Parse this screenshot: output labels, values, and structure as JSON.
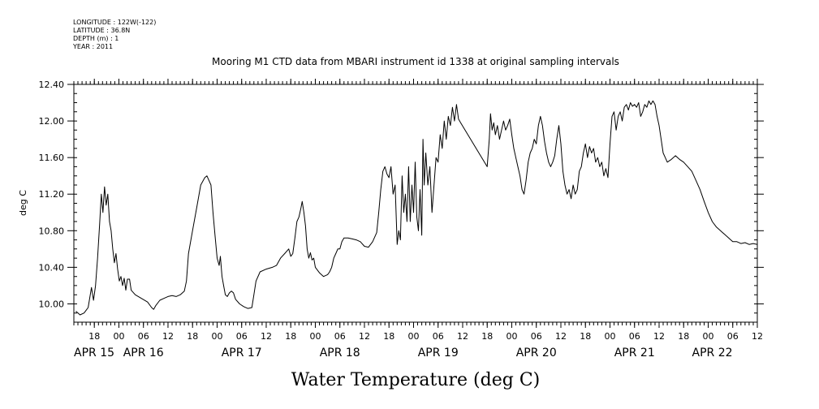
{
  "header": {
    "longitude": "LONGITUDE : 122W(-122)",
    "latitude": "LATITUDE : 36.8N",
    "depth": "DEPTH (m) : 1",
    "year": "YEAR : 2011"
  },
  "chart_data": {
    "type": "line",
    "title": "Mooring M1 CTD data from MBARI instrument id 1338 at original sampling intervals",
    "xlabel": "Water Temperature (deg C)",
    "ylabel": "deg C",
    "ylim": [
      9.8,
      12.4
    ],
    "yticks": [
      10.0,
      10.4,
      10.8,
      11.2,
      11.6,
      12.0,
      12.4
    ],
    "ytick_labels": [
      "10.00",
      "10.40",
      "10.80",
      "11.20",
      "11.60",
      "12.00",
      "12.40"
    ],
    "x_units": "hours since APR 15 00:00 (2011)",
    "xlim": [
      13,
      180
    ],
    "hour_ticks": [
      {
        "h": 18,
        "label": "18"
      },
      {
        "h": 24,
        "label": "00"
      },
      {
        "h": 30,
        "label": "06"
      },
      {
        "h": 36,
        "label": "12"
      },
      {
        "h": 42,
        "label": "18"
      },
      {
        "h": 48,
        "label": "00"
      },
      {
        "h": 54,
        "label": "06"
      },
      {
        "h": 60,
        "label": "12"
      },
      {
        "h": 66,
        "label": "18"
      },
      {
        "h": 72,
        "label": "00"
      },
      {
        "h": 78,
        "label": "06"
      },
      {
        "h": 84,
        "label": "12"
      },
      {
        "h": 90,
        "label": "18"
      },
      {
        "h": 96,
        "label": "00"
      },
      {
        "h": 102,
        "label": "06"
      },
      {
        "h": 108,
        "label": "12"
      },
      {
        "h": 114,
        "label": "18"
      },
      {
        "h": 120,
        "label": "00"
      },
      {
        "h": 126,
        "label": "06"
      },
      {
        "h": 132,
        "label": "12"
      },
      {
        "h": 138,
        "label": "18"
      },
      {
        "h": 144,
        "label": "00"
      },
      {
        "h": 150,
        "label": "06"
      },
      {
        "h": 156,
        "label": "12"
      },
      {
        "h": 162,
        "label": "18"
      },
      {
        "h": 168,
        "label": "00"
      },
      {
        "h": 174,
        "label": "06"
      },
      {
        "h": 180,
        "label": "12"
      }
    ],
    "day_labels": [
      {
        "h": 13,
        "label": "APR 15"
      },
      {
        "h": 30,
        "label": "APR 16"
      },
      {
        "h": 54,
        "label": "APR 17"
      },
      {
        "h": 78,
        "label": "APR 18"
      },
      {
        "h": 102,
        "label": "APR 19"
      },
      {
        "h": 126,
        "label": "APR 20"
      },
      {
        "h": 150,
        "label": "APR 21"
      },
      {
        "h": 169,
        "label": "APR 22"
      }
    ],
    "series": [
      {
        "values": [
          [
            13.5,
            9.92
          ],
          [
            14.5,
            9.88
          ],
          [
            15.5,
            9.9
          ],
          [
            16.5,
            9.96
          ],
          [
            17.3,
            10.18
          ],
          [
            17.8,
            10.04
          ],
          [
            18.3,
            10.2
          ],
          [
            18.8,
            10.5
          ],
          [
            19.3,
            10.88
          ],
          [
            19.7,
            11.2
          ],
          [
            20.1,
            11.0
          ],
          [
            20.5,
            11.28
          ],
          [
            20.9,
            11.08
          ],
          [
            21.3,
            11.2
          ],
          [
            21.7,
            10.9
          ],
          [
            22.1,
            10.8
          ],
          [
            22.5,
            10.6
          ],
          [
            22.9,
            10.45
          ],
          [
            23.3,
            10.55
          ],
          [
            23.7,
            10.38
          ],
          [
            24.1,
            10.25
          ],
          [
            24.5,
            10.3
          ],
          [
            24.9,
            10.2
          ],
          [
            25.3,
            10.28
          ],
          [
            25.7,
            10.15
          ],
          [
            26.1,
            10.27
          ],
          [
            26.6,
            10.27
          ],
          [
            27.0,
            10.15
          ],
          [
            28.0,
            10.1
          ],
          [
            29.5,
            10.06
          ],
          [
            31.0,
            10.02
          ],
          [
            32.0,
            9.96
          ],
          [
            32.5,
            9.94
          ],
          [
            33.0,
            9.98
          ],
          [
            34.0,
            10.04
          ],
          [
            35.0,
            10.06
          ],
          [
            36.0,
            10.08
          ],
          [
            37.0,
            10.09
          ],
          [
            38.0,
            10.08
          ],
          [
            39.0,
            10.1
          ],
          [
            40.0,
            10.14
          ],
          [
            40.5,
            10.25
          ],
          [
            41.0,
            10.55
          ],
          [
            42.0,
            10.8
          ],
          [
            43.0,
            11.05
          ],
          [
            44.0,
            11.3
          ],
          [
            45.0,
            11.38
          ],
          [
            45.5,
            11.4
          ],
          [
            46.0,
            11.35
          ],
          [
            46.5,
            11.3
          ],
          [
            47.0,
            11.0
          ],
          [
            47.5,
            10.75
          ],
          [
            48.0,
            10.5
          ],
          [
            48.5,
            10.42
          ],
          [
            48.8,
            10.52
          ],
          [
            49.2,
            10.3
          ],
          [
            49.6,
            10.2
          ],
          [
            50.0,
            10.1
          ],
          [
            50.5,
            10.08
          ],
          [
            51.0,
            10.12
          ],
          [
            51.5,
            10.14
          ],
          [
            52.0,
            10.12
          ],
          [
            52.5,
            10.05
          ],
          [
            53.5,
            10.0
          ],
          [
            54.5,
            9.97
          ],
          [
            55.5,
            9.95
          ],
          [
            56.5,
            9.96
          ],
          [
            57.0,
            10.1
          ],
          [
            57.5,
            10.25
          ],
          [
            58.5,
            10.35
          ],
          [
            60.0,
            10.38
          ],
          [
            61.5,
            10.4
          ],
          [
            62.5,
            10.42
          ],
          [
            63.5,
            10.5
          ],
          [
            64.5,
            10.55
          ],
          [
            65.5,
            10.6
          ],
          [
            66.0,
            10.52
          ],
          [
            66.5,
            10.55
          ],
          [
            67.0,
            10.72
          ],
          [
            67.5,
            10.9
          ],
          [
            68.0,
            10.95
          ],
          [
            68.5,
            11.05
          ],
          [
            68.8,
            11.12
          ],
          [
            69.2,
            11.0
          ],
          [
            69.6,
            10.85
          ],
          [
            70.0,
            10.6
          ],
          [
            70.4,
            10.5
          ],
          [
            70.8,
            10.56
          ],
          [
            71.2,
            10.48
          ],
          [
            71.6,
            10.5
          ],
          [
            72.0,
            10.4
          ],
          [
            73.0,
            10.34
          ],
          [
            74.0,
            10.3
          ],
          [
            75.0,
            10.32
          ],
          [
            75.5,
            10.35
          ],
          [
            76.0,
            10.4
          ],
          [
            76.5,
            10.5
          ],
          [
            77.0,
            10.55
          ],
          [
            77.5,
            10.6
          ],
          [
            78.0,
            10.6
          ],
          [
            78.5,
            10.68
          ],
          [
            79.0,
            10.72
          ],
          [
            80.0,
            10.72
          ],
          [
            81.0,
            10.71
          ],
          [
            82.0,
            10.7
          ],
          [
            83.0,
            10.68
          ],
          [
            84.0,
            10.63
          ],
          [
            85.0,
            10.62
          ],
          [
            86.0,
            10.68
          ],
          [
            87.0,
            10.78
          ],
          [
            87.5,
            11.0
          ],
          [
            88.0,
            11.25
          ],
          [
            88.5,
            11.45
          ],
          [
            89.0,
            11.5
          ],
          [
            89.5,
            11.42
          ],
          [
            90.0,
            11.38
          ],
          [
            90.5,
            11.5
          ],
          [
            91.0,
            11.2
          ],
          [
            91.5,
            11.3
          ],
          [
            92.0,
            10.65
          ],
          [
            92.4,
            10.8
          ],
          [
            92.8,
            10.7
          ],
          [
            93.2,
            11.4
          ],
          [
            93.6,
            11.0
          ],
          [
            94.0,
            11.2
          ],
          [
            94.4,
            10.9
          ],
          [
            94.8,
            11.5
          ],
          [
            95.2,
            10.9
          ],
          [
            95.6,
            11.3
          ],
          [
            96.0,
            11.0
          ],
          [
            96.4,
            11.55
          ],
          [
            96.8,
            10.95
          ],
          [
            97.2,
            10.8
          ],
          [
            97.6,
            11.25
          ],
          [
            98.0,
            10.75
          ],
          [
            98.3,
            11.8
          ],
          [
            98.6,
            11.3
          ],
          [
            99.0,
            11.65
          ],
          [
            99.5,
            11.3
          ],
          [
            100.0,
            11.5
          ],
          [
            100.5,
            11.0
          ],
          [
            101.0,
            11.3
          ],
          [
            101.5,
            11.6
          ],
          [
            102.0,
            11.55
          ],
          [
            102.5,
            11.85
          ],
          [
            103.0,
            11.7
          ],
          [
            103.5,
            12.0
          ],
          [
            104.0,
            11.8
          ],
          [
            104.5,
            12.05
          ],
          [
            105.0,
            11.95
          ],
          [
            105.5,
            12.15
          ],
          [
            106.0,
            12.0
          ],
          [
            106.5,
            12.18
          ],
          [
            107.0,
            12.02
          ],
          [
            107.5,
            11.98
          ],
          [
            114.0,
            11.5
          ],
          [
            114.5,
            11.8
          ],
          [
            114.8,
            12.08
          ],
          [
            115.2,
            11.9
          ],
          [
            115.6,
            11.98
          ],
          [
            116.0,
            11.85
          ],
          [
            116.5,
            11.95
          ],
          [
            117.0,
            11.8
          ],
          [
            117.5,
            11.9
          ],
          [
            118.0,
            12.0
          ],
          [
            118.5,
            11.9
          ],
          [
            119.0,
            11.95
          ],
          [
            119.5,
            12.02
          ],
          [
            120.0,
            11.85
          ],
          [
            120.5,
            11.7
          ],
          [
            121.0,
            11.6
          ],
          [
            121.5,
            11.5
          ],
          [
            122.0,
            11.4
          ],
          [
            122.5,
            11.25
          ],
          [
            123.0,
            11.2
          ],
          [
            123.5,
            11.35
          ],
          [
            124.0,
            11.55
          ],
          [
            124.5,
            11.65
          ],
          [
            125.0,
            11.7
          ],
          [
            125.5,
            11.8
          ],
          [
            126.0,
            11.75
          ],
          [
            126.5,
            11.95
          ],
          [
            127.0,
            12.05
          ],
          [
            127.5,
            11.95
          ],
          [
            128.0,
            11.78
          ],
          [
            128.5,
            11.65
          ],
          [
            129.0,
            11.55
          ],
          [
            129.5,
            11.5
          ],
          [
            130.0,
            11.55
          ],
          [
            130.5,
            11.62
          ],
          [
            131.0,
            11.8
          ],
          [
            131.5,
            11.95
          ],
          [
            132.0,
            11.75
          ],
          [
            132.5,
            11.45
          ],
          [
            133.0,
            11.3
          ],
          [
            133.5,
            11.2
          ],
          [
            134.0,
            11.25
          ],
          [
            134.5,
            11.15
          ],
          [
            135.0,
            11.3
          ],
          [
            135.5,
            11.2
          ],
          [
            136.0,
            11.25
          ],
          [
            136.5,
            11.45
          ],
          [
            137.0,
            11.5
          ],
          [
            137.5,
            11.65
          ],
          [
            138.0,
            11.75
          ],
          [
            138.5,
            11.6
          ],
          [
            139.0,
            11.72
          ],
          [
            139.5,
            11.65
          ],
          [
            140.0,
            11.7
          ],
          [
            140.5,
            11.55
          ],
          [
            141.0,
            11.6
          ],
          [
            141.5,
            11.5
          ],
          [
            142.0,
            11.55
          ],
          [
            142.5,
            11.4
          ],
          [
            143.0,
            11.48
          ],
          [
            143.5,
            11.38
          ],
          [
            144.0,
            11.75
          ],
          [
            144.5,
            12.05
          ],
          [
            145.0,
            12.1
          ],
          [
            145.5,
            11.9
          ],
          [
            146.0,
            12.05
          ],
          [
            146.5,
            12.1
          ],
          [
            147.0,
            12.0
          ],
          [
            147.5,
            12.15
          ],
          [
            148.0,
            12.18
          ],
          [
            148.5,
            12.12
          ],
          [
            149.0,
            12.2
          ],
          [
            149.5,
            12.16
          ],
          [
            150.0,
            12.18
          ],
          [
            150.5,
            12.15
          ],
          [
            151.0,
            12.2
          ],
          [
            151.5,
            12.05
          ],
          [
            152.0,
            12.1
          ],
          [
            152.5,
            12.18
          ],
          [
            153.0,
            12.15
          ],
          [
            153.5,
            12.22
          ],
          [
            154.0,
            12.18
          ],
          [
            154.5,
            12.22
          ],
          [
            155.0,
            12.18
          ],
          [
            155.5,
            12.05
          ],
          [
            156.0,
            11.95
          ],
          [
            156.5,
            11.8
          ],
          [
            157.0,
            11.65
          ],
          [
            157.5,
            11.6
          ],
          [
            158.0,
            11.55
          ],
          [
            159.0,
            11.58
          ],
          [
            160.0,
            11.62
          ],
          [
            161.0,
            11.58
          ],
          [
            162.0,
            11.55
          ],
          [
            163.0,
            11.5
          ],
          [
            164.0,
            11.45
          ],
          [
            165.0,
            11.35
          ],
          [
            166.0,
            11.25
          ],
          [
            167.0,
            11.12
          ],
          [
            168.0,
            11.0
          ],
          [
            169.0,
            10.9
          ],
          [
            170.0,
            10.84
          ],
          [
            171.0,
            10.8
          ],
          [
            172.0,
            10.76
          ],
          [
            173.0,
            10.72
          ],
          [
            174.0,
            10.68
          ],
          [
            175.0,
            10.68
          ],
          [
            176.0,
            10.66
          ],
          [
            177.0,
            10.67
          ],
          [
            178.0,
            10.65
          ],
          [
            179.0,
            10.66
          ],
          [
            180.0,
            10.65
          ]
        ]
      }
    ],
    "grid": false,
    "legend": "none"
  }
}
